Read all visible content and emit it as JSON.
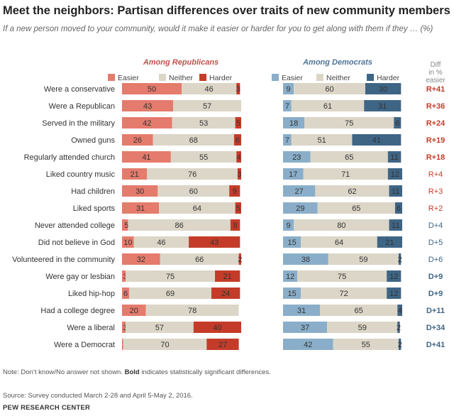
{
  "header": {
    "title": "Meet the neighbors: Partisan differences over traits of new community members",
    "subtitle": "If a new person moved to your community, would it make it easier or harder for you to get along with them if they … (%)"
  },
  "footer": {
    "note_prefix": "Note: Don’t know/No answer not shown. ",
    "note_bold": "Bold",
    "note_suffix": " indicates statistically significant differences.",
    "source": "Source: Survey conducted March 2-28 and April 5-May 2, 2016.",
    "org": "PEW RESEARCH CENTER"
  },
  "chart_data": {
    "type": "bar",
    "stacked": true,
    "orientation": "horizontal",
    "panels": [
      "Among Republicans",
      "Among Democrats"
    ],
    "segments": [
      "Easier",
      "Neither",
      "Harder"
    ],
    "diff_header": "Diff in % easier",
    "colors": {
      "rep_easier": "#e47b6c",
      "rep_neither": "#dcd6c8",
      "rep_harder": "#c43c29",
      "dem_easier": "#8aaec9",
      "dem_neither": "#dcd6c8",
      "dem_harder": "#3f6585",
      "rep_diff": "#c43c29",
      "dem_diff": "#3f6585",
      "panel_rep": "#c0504d",
      "panel_dem": "#4f7396"
    },
    "rows": [
      {
        "label": "Were a conservative",
        "rep": [
          50,
          46,
          3
        ],
        "dem": [
          9,
          60,
          30
        ],
        "diff": "R+41",
        "party": "R",
        "bold": true
      },
      {
        "label": "Were a Republican",
        "rep": [
          43,
          57,
          0
        ],
        "dem": [
          7,
          61,
          31
        ],
        "diff": "R+36",
        "party": "R",
        "bold": true
      },
      {
        "label": "Served in the military",
        "rep": [
          42,
          53,
          5
        ],
        "dem": [
          18,
          75,
          6
        ],
        "diff": "R+24",
        "party": "R",
        "bold": true
      },
      {
        "label": "Owned guns",
        "rep": [
          26,
          68,
          6
        ],
        "dem": [
          7,
          51,
          41
        ],
        "diff": "R+19",
        "party": "R",
        "bold": true
      },
      {
        "label": "Regularly attended church",
        "rep": [
          41,
          55,
          4
        ],
        "dem": [
          23,
          65,
          11
        ],
        "diff": "R+18",
        "party": "R",
        "bold": true
      },
      {
        "label": "Liked country music",
        "rep": [
          21,
          76,
          3
        ],
        "dem": [
          17,
          71,
          12
        ],
        "diff": "R+4",
        "party": "R",
        "bold": false
      },
      {
        "label": "Had children",
        "rep": [
          30,
          60,
          9
        ],
        "dem": [
          27,
          62,
          11
        ],
        "diff": "R+3",
        "party": "R",
        "bold": false
      },
      {
        "label": "Liked sports",
        "rep": [
          31,
          64,
          5
        ],
        "dem": [
          29,
          65,
          6
        ],
        "diff": "R+2",
        "party": "R",
        "bold": false
      },
      {
        "label": "Never attended college",
        "rep": [
          5,
          86,
          8
        ],
        "dem": [
          9,
          80,
          11
        ],
        "diff": "D+4",
        "party": "D",
        "bold": false
      },
      {
        "label": "Did not believe in God",
        "rep": [
          10,
          46,
          43
        ],
        "dem": [
          15,
          64,
          21
        ],
        "diff": "D+5",
        "party": "D",
        "bold": false
      },
      {
        "label": "Volunteered in the community",
        "rep": [
          32,
          66,
          2
        ],
        "dem": [
          38,
          59,
          2
        ],
        "diff": "D+6",
        "party": "D",
        "bold": false
      },
      {
        "label": "Were gay or lesbian",
        "rep": [
          3,
          75,
          21
        ],
        "dem": [
          12,
          75,
          12
        ],
        "diff": "D+9",
        "party": "D",
        "bold": true
      },
      {
        "label": "Liked hip-hop",
        "rep": [
          6,
          69,
          24
        ],
        "dem": [
          15,
          72,
          12
        ],
        "diff": "D+9",
        "party": "D",
        "bold": true
      },
      {
        "label": "Had a college degree",
        "rep": [
          20,
          78,
          0
        ],
        "dem": [
          31,
          65,
          4
        ],
        "diff": "D+11",
        "party": "D",
        "bold": true
      },
      {
        "label": "Were a liberal",
        "rep": [
          3,
          57,
          40
        ],
        "dem": [
          37,
          59,
          2
        ],
        "diff": "D+34",
        "party": "D",
        "bold": true
      },
      {
        "label": "Were a Democrat",
        "rep": [
          1,
          70,
          27
        ],
        "dem": [
          42,
          55,
          2
        ],
        "diff": "D+41",
        "party": "D",
        "bold": true
      }
    ]
  }
}
